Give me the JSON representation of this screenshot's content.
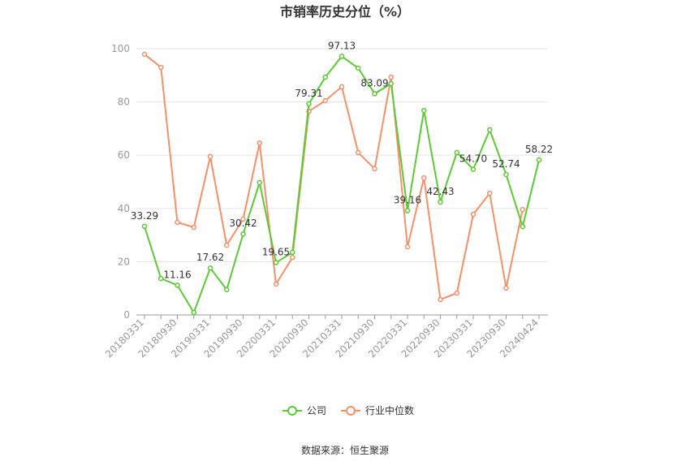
{
  "chart_data": {
    "type": "line",
    "title": "市销率历史分位（%）",
    "source": "数据来源：恒生聚源",
    "categories": [
      "20180331",
      null,
      "20180930",
      null,
      "20190331",
      null,
      "20190930",
      null,
      "20200331",
      null,
      "20200930",
      null,
      "20210331",
      null,
      "20210930",
      null,
      "20220331",
      null,
      "20220930",
      null,
      "20230331",
      null,
      "20230930",
      null,
      "20240424"
    ],
    "series": [
      {
        "name": "公司",
        "color": "#5ec936",
        "values": [
          33.29,
          13.7,
          11.16,
          0.9,
          17.62,
          9.5,
          30.42,
          49.7,
          19.65,
          23.5,
          79.31,
          89.3,
          97.13,
          92.7,
          83.09,
          86.9,
          39.16,
          76.8,
          42.43,
          61.0,
          54.7,
          69.5,
          52.74,
          33.2,
          58.22
        ],
        "value_labels": [
          "33.29",
          null,
          "11.16",
          null,
          "17.62",
          null,
          "30.42",
          null,
          "19.65",
          null,
          "79.31",
          null,
          "97.13",
          null,
          "83.09",
          null,
          "39.16",
          null,
          "42.43",
          null,
          "54.70",
          null,
          "52.74",
          null,
          "58.22"
        ]
      },
      {
        "name": "行业中位数",
        "color": "#f4916a",
        "values": [
          97.9,
          93.0,
          34.8,
          32.9,
          59.5,
          26.2,
          36.0,
          64.6,
          11.6,
          21.6,
          76.5,
          80.5,
          85.7,
          61.0,
          54.9,
          89.3,
          25.6,
          51.5,
          5.8,
          8.2,
          37.8,
          45.7,
          10.1,
          39.6,
          null
        ]
      }
    ],
    "ylim": [
      0,
      100
    ],
    "yticks": [
      0,
      20,
      40,
      60,
      80,
      100
    ],
    "grid": true
  }
}
